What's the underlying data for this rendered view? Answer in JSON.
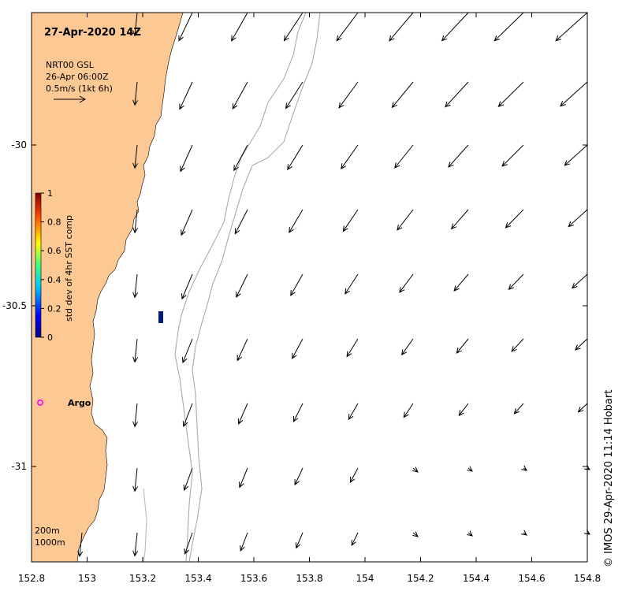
{
  "title": "27-Apr-2020 14Z",
  "legend_vector": {
    "line1": "NRT00 GSL",
    "line2": "26-Apr 06:00Z",
    "line3": "0.5m/s (1kt 6h)"
  },
  "colorbar": {
    "label": "std dev of 4hr SST comp",
    "ticks": [
      "1",
      "0.8",
      "0.6",
      "0.4",
      "0.2",
      "0"
    ]
  },
  "x_ticks": [
    "152.8",
    "153",
    "153.2",
    "153.4",
    "153.6",
    "153.8",
    "154",
    "154.2",
    "154.4",
    "154.6",
    "154.8"
  ],
  "y_ticks": [
    "-30",
    "-30.5",
    "-31"
  ],
  "argo_label": "Argo",
  "depth_legend": {
    "a": "200m",
    "b": "1000m"
  },
  "credit": "© IMOS 29-Apr-2020 11:14 Hobart",
  "colors": {
    "land": "#fcc894",
    "argo": "#ff00ff",
    "isobath": "#aaaaaa"
  }
}
